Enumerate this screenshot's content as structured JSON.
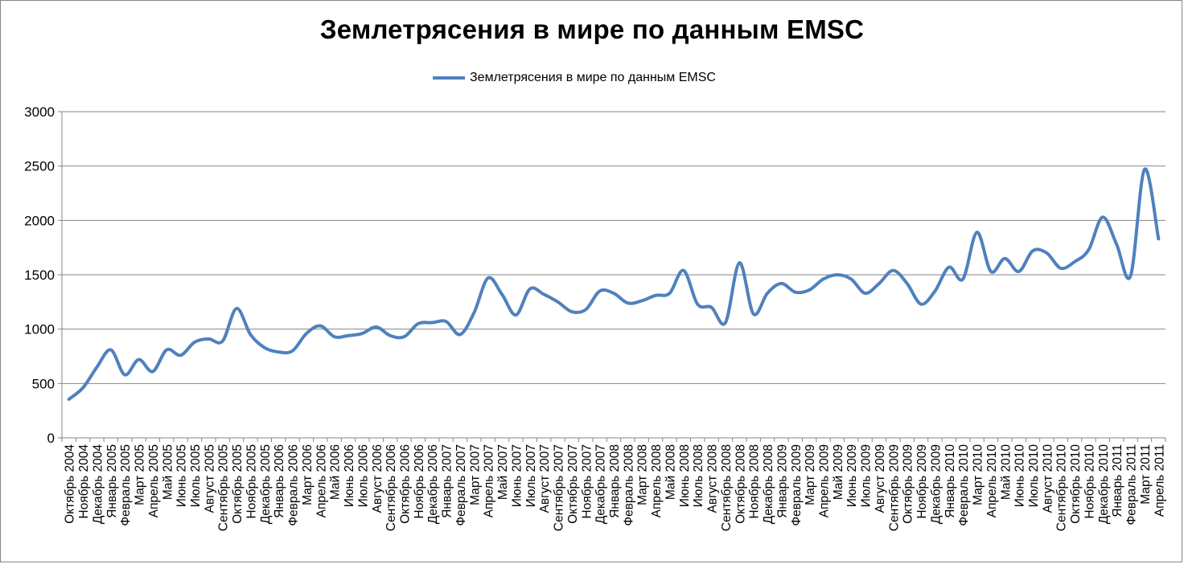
{
  "chart_data": {
    "type": "line",
    "title": "Землетрясения в мире по данным EMSC",
    "xlabel": "",
    "ylabel": "",
    "ylim": [
      0,
      3000
    ],
    "yticks": [
      0,
      500,
      1000,
      1500,
      2000,
      2500,
      3000
    ],
    "grid": true,
    "legend_position": "top-center",
    "colors": {
      "series": "#4F81BD",
      "grid": "#868686",
      "axis": "#868686",
      "text": "#000000"
    },
    "categories": [
      "Октябрь 2004",
      "Ноябрь 2004",
      "Декабрь 2004",
      "Январь 2005",
      "Февраль 2005",
      "Март 2005",
      "Апрель 2005",
      "Май 2005",
      "Июнь 2005",
      "Июль 2005",
      "Август 2005",
      "Сентябрь 2005",
      "Октябрь 2005",
      "Ноябрь 2005",
      "Декабрь 2005",
      "Январь 2006",
      "Февраль 2006",
      "Март 2006",
      "Апрель 2006",
      "Май 2006",
      "Июнь 2006",
      "Июль 2006",
      "Август 2006",
      "Сентябрь 2006",
      "Октябрь 2006",
      "Ноябрь 2006",
      "Декабрь 2006",
      "Январь 2007",
      "Февраль 2007",
      "Март 2007",
      "Апрель 2007",
      "Май 2007",
      "Июнь 2007",
      "Июль 2007",
      "Август 2007",
      "Сентябрь 2007",
      "Октябрь 2007",
      "Ноябрь 2007",
      "Декабрь 2007",
      "Январь 2008",
      "Февраль 2008",
      "Март 2008",
      "Апрель 2008",
      "Май 2008",
      "Июнь 2008",
      "Июль 2008",
      "Август 2008",
      "Сентябрь 2008",
      "Октябрь 2008",
      "Ноябрь 2008",
      "Декабрь 2008",
      "Январь 2009",
      "Февраль 2009",
      "Март 2009",
      "Апрель 2009",
      "Май 2009",
      "Июнь 2009",
      "Июль 2009",
      "Август 2009",
      "Сентябрь 2009",
      "Октябрь 2009",
      "Ноябрь 2009",
      "Декабрь 2009",
      "Январь 2010",
      "Февраль 2010",
      "Март 2010",
      "Апрель 2010",
      "Май 2010",
      "Июнь 2010",
      "Июль 2010",
      "Август 2010",
      "Сентябрь 2010",
      "Октябрь 2010",
      "Ноябрь 2010",
      "Декабрь 2010",
      "Январь 2011",
      "Февраль 2011",
      "Март 2011",
      "Апрель 2011"
    ],
    "series": [
      {
        "name": "Землетрясения в мире по данным EMSC",
        "values": [
          355,
          460,
          650,
          810,
          580,
          720,
          610,
          810,
          760,
          880,
          910,
          890,
          1190,
          950,
          830,
          790,
          800,
          960,
          1030,
          930,
          940,
          960,
          1020,
          940,
          930,
          1050,
          1060,
          1070,
          950,
          1150,
          1470,
          1320,
          1130,
          1370,
          1320,
          1250,
          1160,
          1180,
          1350,
          1330,
          1240,
          1260,
          1310,
          1330,
          1540,
          1230,
          1200,
          1060,
          1610,
          1140,
          1330,
          1420,
          1340,
          1360,
          1460,
          1500,
          1460,
          1330,
          1420,
          1540,
          1420,
          1230,
          1350,
          1570,
          1460,
          1890,
          1530,
          1650,
          1530,
          1720,
          1700,
          1560,
          1620,
          1730,
          2030,
          1780,
          1490,
          2470,
          1830
        ]
      }
    ]
  }
}
